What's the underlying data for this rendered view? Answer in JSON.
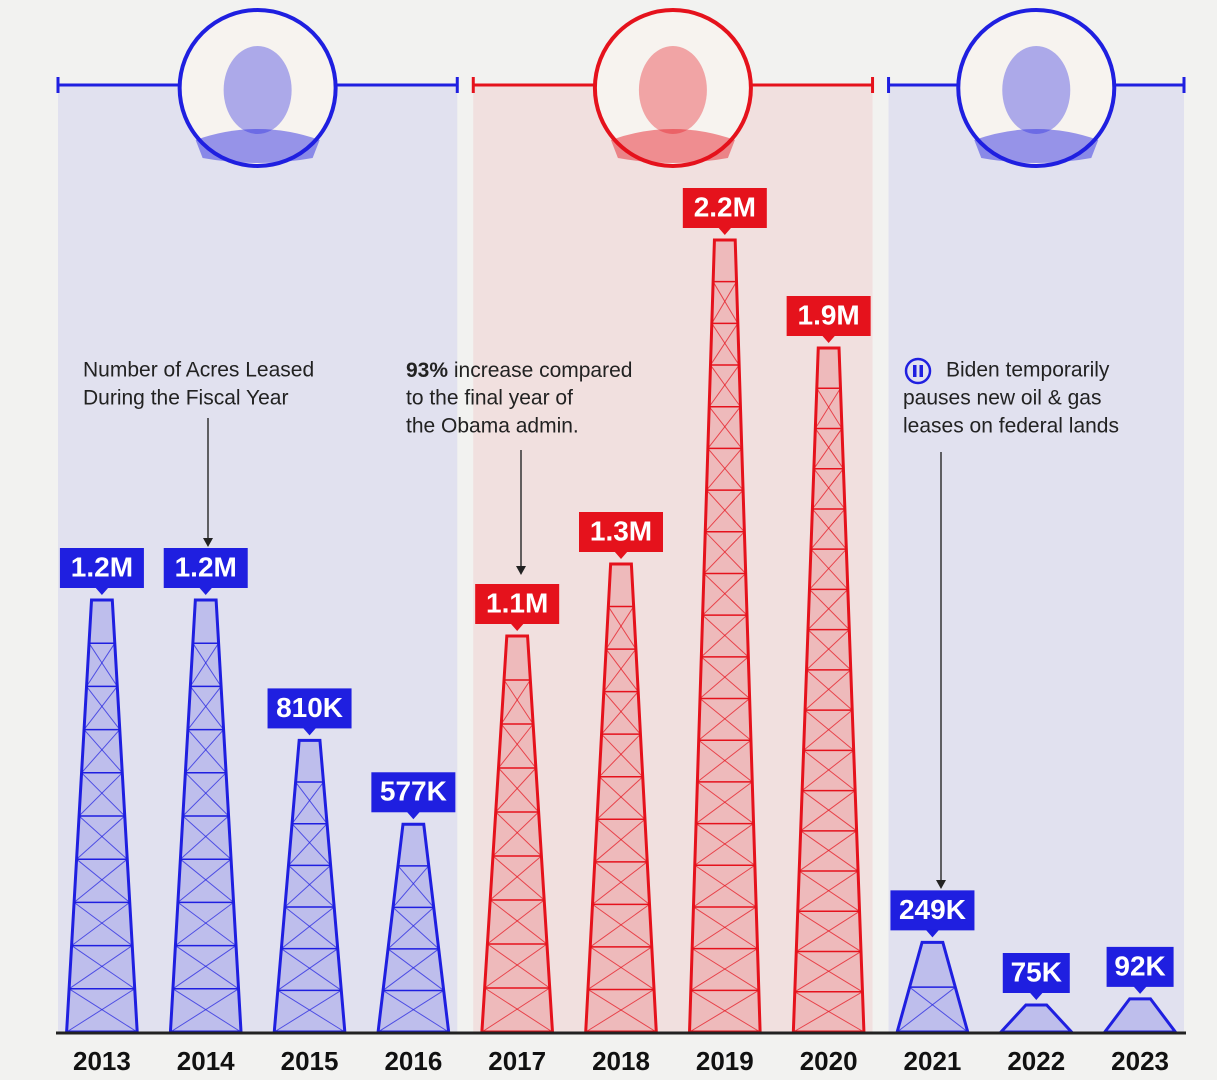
{
  "chart_data": {
    "type": "bar",
    "categories": [
      "2013",
      "2014",
      "2015",
      "2016",
      "2017",
      "2018",
      "2019",
      "2020",
      "2021",
      "2022",
      "2023"
    ],
    "values": [
      1200000,
      1200000,
      810000,
      577000,
      1100000,
      1300000,
      2200000,
      1900000,
      249000,
      75000,
      92000
    ],
    "value_labels": [
      "1.2M",
      "1.2M",
      "810K",
      "577K",
      "1.1M",
      "1.3M",
      "2.2M",
      "1.9M",
      "249K",
      "75K",
      "92K"
    ],
    "colors": [
      "#1f1fe0",
      "#1f1fe0",
      "#1f1fe0",
      "#1f1fe0",
      "#e5121c",
      "#e5121c",
      "#e5121c",
      "#e5121c",
      "#1f1fe0",
      "#1f1fe0",
      "#1f1fe0"
    ],
    "annotations": [
      {
        "lines": [
          "Number of Acres Leased",
          "During the Fiscal Year"
        ]
      },
      {
        "highlight": "93%",
        "lines": [
          "increase compared",
          "to the final year of",
          "the Obama admin."
        ]
      },
      {
        "lines": [
          "Biden temporarily",
          "pauses new oil & gas",
          "leases on federal lands"
        ]
      }
    ]
  }
}
